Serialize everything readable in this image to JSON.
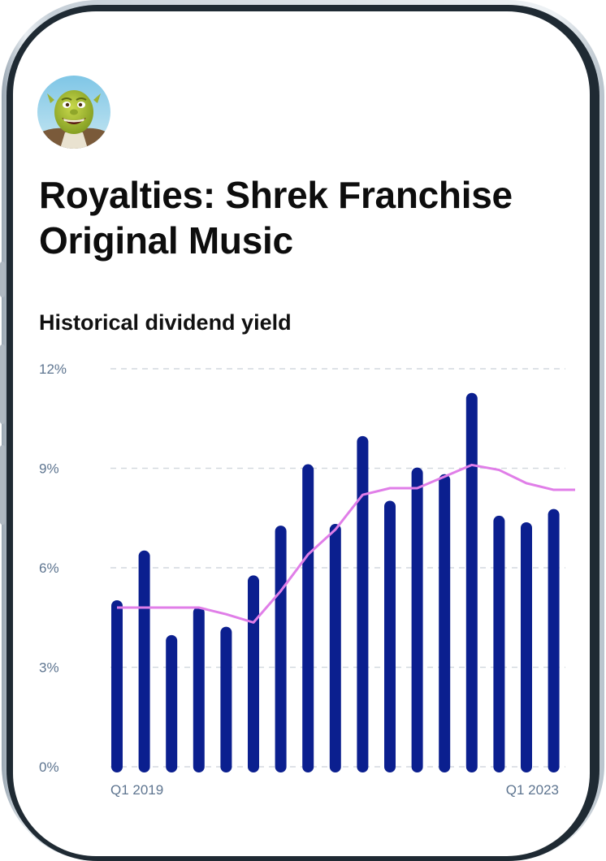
{
  "header": {
    "title": "Royalties: Shrek Franchise Original Music",
    "avatar_icon": "ogre-avatar-icon"
  },
  "chart_section": {
    "subtitle": "Historical dividend yield"
  },
  "chart_data": {
    "type": "bar",
    "title": "",
    "xlabel": "",
    "ylabel": "",
    "ylim": [
      0,
      12
    ],
    "y_ticks": [
      "12%",
      "9%",
      "6%",
      "3%",
      "0%"
    ],
    "y_tick_values": [
      12,
      9,
      6,
      3,
      0
    ],
    "x_tick_labels": [
      "Q1 2019",
      "Q1 2023"
    ],
    "grid": true,
    "bar_color": "#0b1f8f",
    "line_color": "#e07ee8",
    "series": [
      {
        "type": "bar",
        "values": [
          4.85,
          6.35,
          3.8,
          4.65,
          4.05,
          5.6,
          7.1,
          8.95,
          7.15,
          9.8,
          7.85,
          8.85,
          8.65,
          11.1,
          7.4,
          7.2,
          7.6
        ]
      },
      {
        "type": "line",
        "values": [
          4.8,
          4.8,
          4.8,
          4.8,
          4.6,
          4.35,
          5.3,
          6.4,
          7.15,
          8.2,
          8.4,
          8.4,
          8.75,
          9.1,
          8.95,
          8.55,
          8.35
        ]
      }
    ]
  }
}
